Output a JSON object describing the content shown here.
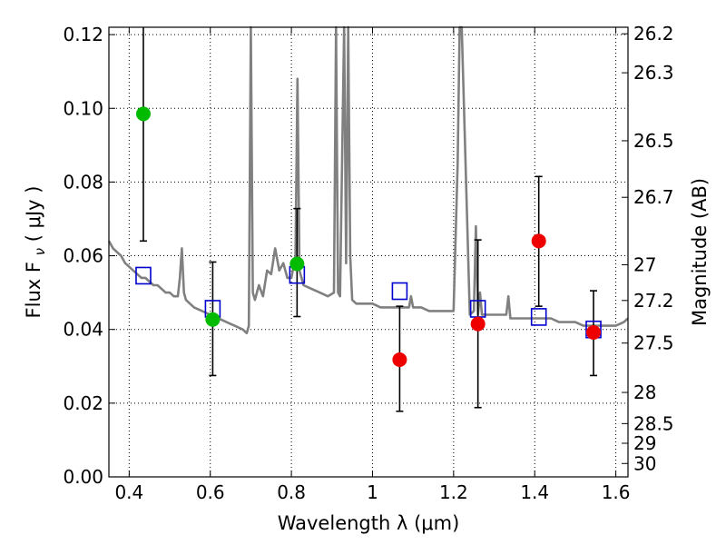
{
  "chart_data": {
    "type": "scatter",
    "title": "",
    "xlabel": "Wavelength  λ (μm)",
    "ylabel": "Flux  F",
    "ylabel_sub": "ν",
    "ylabel_unit": "( μJy )",
    "y2label": "Magnitude (AB)",
    "xlim": [
      0.35,
      1.63
    ],
    "ylim": [
      0.0,
      0.122
    ],
    "grid": true,
    "x_ticks": [
      {
        "value": 0.4,
        "label": "0.4"
      },
      {
        "value": 0.6,
        "label": "0.6"
      },
      {
        "value": 0.8,
        "label": "0.8"
      },
      {
        "value": 1.0,
        "label": "1"
      },
      {
        "value": 1.2,
        "label": "1.2"
      },
      {
        "value": 1.4,
        "label": "1.4"
      },
      {
        "value": 1.6,
        "label": "1.6"
      }
    ],
    "y_ticks": [
      {
        "value": 0.0,
        "label": "0.00"
      },
      {
        "value": 0.02,
        "label": "0.02"
      },
      {
        "value": 0.04,
        "label": "0.04"
      },
      {
        "value": 0.06,
        "label": "0.06"
      },
      {
        "value": 0.08,
        "label": "0.08"
      },
      {
        "value": 0.1,
        "label": "0.10"
      },
      {
        "value": 0.12,
        "label": "0.12"
      }
    ],
    "y2_ticks": [
      {
        "mag": 26.2,
        "label": "26.2"
      },
      {
        "mag": 26.3,
        "label": "26.3"
      },
      {
        "mag": 26.5,
        "label": "26.5"
      },
      {
        "mag": 26.7,
        "label": "26.7"
      },
      {
        "mag": 27.0,
        "label": "27"
      },
      {
        "mag": 27.2,
        "label": "27.2"
      },
      {
        "mag": 27.5,
        "label": "27.5"
      },
      {
        "mag": 28.0,
        "label": "28"
      },
      {
        "mag": 28.5,
        "label": "28.5"
      },
      {
        "mag": 29.0,
        "label": "29"
      },
      {
        "mag": 30.0,
        "label": "30"
      }
    ],
    "series": [
      {
        "kind": "model-spectrum",
        "color": "#808080",
        "x": [
          0.35,
          0.36,
          0.37,
          0.38,
          0.39,
          0.4,
          0.41,
          0.42,
          0.43,
          0.44,
          0.45,
          0.46,
          0.47,
          0.48,
          0.49,
          0.5,
          0.51,
          0.52,
          0.525,
          0.53,
          0.535,
          0.54,
          0.56,
          0.58,
          0.6,
          0.62,
          0.64,
          0.66,
          0.68,
          0.69,
          0.695,
          0.7,
          0.705,
          0.71,
          0.72,
          0.73,
          0.74,
          0.75,
          0.76,
          0.77,
          0.78,
          0.79,
          0.8,
          0.81,
          0.815,
          0.82,
          0.83,
          0.85,
          0.87,
          0.89,
          0.905,
          0.91,
          0.915,
          0.92,
          0.93,
          0.935,
          0.94,
          0.945,
          0.95,
          0.96,
          0.98,
          1.0,
          1.02,
          1.04,
          1.06,
          1.08,
          1.09,
          1.095,
          1.1,
          1.12,
          1.14,
          1.16,
          1.18,
          1.2,
          1.21,
          1.215,
          1.22,
          1.24,
          1.25,
          1.255,
          1.26,
          1.265,
          1.27,
          1.28,
          1.3,
          1.32,
          1.33,
          1.335,
          1.34,
          1.36,
          1.38,
          1.4,
          1.42,
          1.44,
          1.46,
          1.48,
          1.5,
          1.52,
          1.54,
          1.56,
          1.58,
          1.6,
          1.62,
          1.63
        ],
        "values": [
          0.064,
          0.062,
          0.061,
          0.06,
          0.058,
          0.057,
          0.056,
          0.055,
          0.054,
          0.054,
          0.053,
          0.052,
          0.052,
          0.051,
          0.05,
          0.05,
          0.049,
          0.049,
          0.054,
          0.062,
          0.05,
          0.048,
          0.046,
          0.045,
          0.044,
          0.043,
          0.042,
          0.041,
          0.04,
          0.039,
          0.041,
          0.122,
          0.05,
          0.048,
          0.052,
          0.049,
          0.056,
          0.055,
          0.062,
          0.056,
          0.058,
          0.054,
          0.054,
          0.06,
          0.108,
          0.056,
          0.052,
          0.051,
          0.05,
          0.049,
          0.05,
          0.122,
          0.05,
          0.049,
          0.122,
          0.058,
          0.122,
          0.06,
          0.048,
          0.047,
          0.047,
          0.047,
          0.046,
          0.046,
          0.046,
          0.046,
          0.046,
          0.049,
          0.046,
          0.046,
          0.045,
          0.045,
          0.045,
          0.045,
          0.085,
          0.122,
          0.122,
          0.044,
          0.045,
          0.068,
          0.044,
          0.05,
          0.044,
          0.044,
          0.044,
          0.044,
          0.044,
          0.049,
          0.043,
          0.043,
          0.043,
          0.043,
          0.043,
          0.043,
          0.042,
          0.042,
          0.042,
          0.041,
          0.041,
          0.041,
          0.041,
          0.041,
          0.042,
          0.043
        ]
      },
      {
        "kind": "model-photometry",
        "marker": "open-square",
        "color": "#0000cc",
        "x": [
          0.435,
          0.606,
          0.814,
          1.067,
          1.26,
          1.41,
          1.545
        ],
        "values": [
          0.0546,
          0.0456,
          0.0548,
          0.0504,
          0.0456,
          0.0434,
          0.04
        ]
      },
      {
        "kind": "observed",
        "marker": "filled-circle",
        "color": "#00bb00",
        "x": [
          0.435,
          0.606,
          0.814
        ],
        "values": [
          0.0985,
          0.0427,
          0.0578
        ],
        "err_low": [
          0.064,
          0.0275,
          0.0435
        ],
        "err_high": [
          0.122,
          0.0583,
          0.0728
        ]
      },
      {
        "kind": "observed",
        "marker": "filled-circle",
        "color": "#ee0000",
        "x": [
          1.067,
          1.26,
          1.41,
          1.545
        ],
        "values": [
          0.0318,
          0.0415,
          0.064,
          0.0392
        ],
        "err_low": [
          0.0178,
          0.0188,
          0.0463,
          0.0275
        ],
        "err_high": [
          0.0463,
          0.0643,
          0.0815,
          0.0505
        ]
      }
    ]
  }
}
